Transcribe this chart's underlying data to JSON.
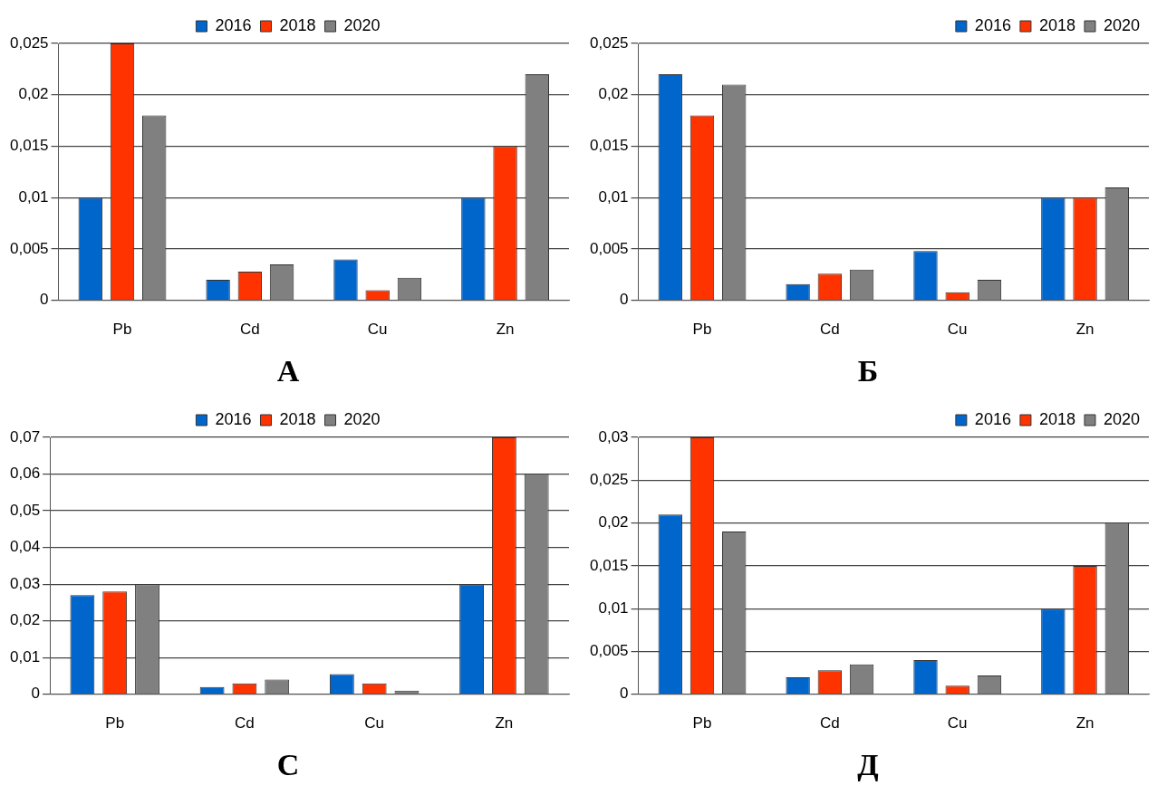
{
  "chart_data": [
    {
      "type": "bar",
      "title": "А",
      "categories": [
        "Pb",
        "Cd",
        "Cu",
        "Zn"
      ],
      "ylim": [
        0,
        0.025
      ],
      "yticks": [
        {
          "value": 0,
          "label": "0"
        },
        {
          "value": 0.005,
          "label": "0,005"
        },
        {
          "value": 0.01,
          "label": "0,01"
        },
        {
          "value": 0.015,
          "label": "0,015"
        },
        {
          "value": 0.02,
          "label": "0,02"
        },
        {
          "value": 0.025,
          "label": "0,025"
        }
      ],
      "grid": "y",
      "legend": "top",
      "series": [
        {
          "name": "2016",
          "color": "#0066cc",
          "values": [
            0.01,
            0.002,
            0.004,
            0.01
          ]
        },
        {
          "name": "2018",
          "color": "#ff3300",
          "values": [
            0.025,
            0.0028,
            0.001,
            0.015
          ]
        },
        {
          "name": "2020",
          "color": "#808080",
          "values": [
            0.018,
            0.0035,
            0.0022,
            0.022
          ]
        }
      ]
    },
    {
      "type": "bar",
      "title": "Б",
      "categories": [
        "Pb",
        "Cd",
        "Cu",
        "Zn"
      ],
      "ylim": [
        0,
        0.025
      ],
      "yticks": [
        {
          "value": 0,
          "label": "0"
        },
        {
          "value": 0.005,
          "label": "0,005"
        },
        {
          "value": 0.01,
          "label": "0,01"
        },
        {
          "value": 0.015,
          "label": "0,015"
        },
        {
          "value": 0.02,
          "label": "0,02"
        },
        {
          "value": 0.025,
          "label": "0,025"
        }
      ],
      "grid": "y",
      "legend": "top right",
      "series": [
        {
          "name": "2016",
          "color": "#0066cc",
          "values": [
            0.022,
            0.0016,
            0.0048,
            0.01
          ]
        },
        {
          "name": "2018",
          "color": "#ff3300",
          "values": [
            0.018,
            0.0026,
            0.0008,
            0.01
          ]
        },
        {
          "name": "2020",
          "color": "#808080",
          "values": [
            0.021,
            0.003,
            0.002,
            0.011
          ]
        }
      ]
    },
    {
      "type": "bar",
      "title": "С",
      "categories": [
        "Pb",
        "Cd",
        "Cu",
        "Zn"
      ],
      "ylim": [
        0,
        0.07
      ],
      "yticks": [
        {
          "value": 0,
          "label": "0"
        },
        {
          "value": 0.01,
          "label": "0,01"
        },
        {
          "value": 0.02,
          "label": "0,02"
        },
        {
          "value": 0.03,
          "label": "0,03"
        },
        {
          "value": 0.04,
          "label": "0,04"
        },
        {
          "value": 0.05,
          "label": "0,05"
        },
        {
          "value": 0.06,
          "label": "0,06"
        },
        {
          "value": 0.07,
          "label": "0,07"
        }
      ],
      "grid": "y",
      "legend": "top",
      "series": [
        {
          "name": "2016",
          "color": "#0066cc",
          "values": [
            0.027,
            0.002,
            0.0055,
            0.03
          ]
        },
        {
          "name": "2018",
          "color": "#ff3300",
          "values": [
            0.028,
            0.003,
            0.003,
            0.07
          ]
        },
        {
          "name": "2020",
          "color": "#808080",
          "values": [
            0.03,
            0.004,
            0.001,
            0.06
          ]
        }
      ]
    },
    {
      "type": "bar",
      "title": "Д",
      "categories": [
        "Pb",
        "Cd",
        "Cu",
        "Zn"
      ],
      "ylim": [
        0,
        0.03
      ],
      "yticks": [
        {
          "value": 0,
          "label": "0"
        },
        {
          "value": 0.005,
          "label": "0,005"
        },
        {
          "value": 0.01,
          "label": "0,01"
        },
        {
          "value": 0.015,
          "label": "0,015"
        },
        {
          "value": 0.02,
          "label": "0,02"
        },
        {
          "value": 0.025,
          "label": "0,025"
        },
        {
          "value": 0.03,
          "label": "0,03"
        }
      ],
      "grid": "y",
      "legend": "top right",
      "series": [
        {
          "name": "2016",
          "color": "#0066cc",
          "values": [
            0.021,
            0.002,
            0.004,
            0.01
          ]
        },
        {
          "name": "2018",
          "color": "#ff3300",
          "values": [
            0.03,
            0.0028,
            0.001,
            0.015
          ]
        },
        {
          "name": "2020",
          "color": "#808080",
          "values": [
            0.019,
            0.0035,
            0.0022,
            0.02
          ]
        }
      ]
    }
  ]
}
